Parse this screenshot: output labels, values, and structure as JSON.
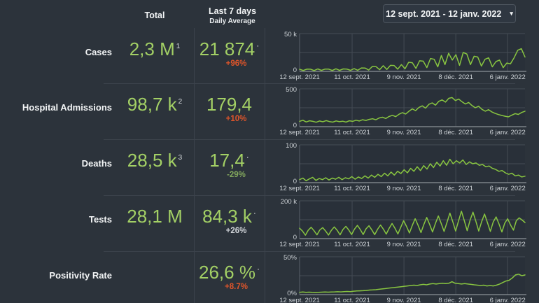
{
  "date_picker": {
    "value": "12 sept. 2021 - 12 janv. 2022",
    "caret": "▾"
  },
  "table": {
    "columns": {
      "total": "Total",
      "last7": "Last 7 days",
      "last7_sub": "Daily Average"
    }
  },
  "rows": [
    {
      "label": "Cases",
      "total": "2,3 M",
      "total_sup": "1",
      "avg": "21 874",
      "avg_sup": "·",
      "change": "+96%",
      "change_style": "orange"
    },
    {
      "label": "Hospital Admissions",
      "total": "98,7 k",
      "total_sup": "2",
      "avg": "179,4",
      "avg_sup": "",
      "change": "+10%",
      "change_style": "orange"
    },
    {
      "label": "Deaths",
      "total": "28,5 k",
      "total_sup": "3",
      "avg": "17,4",
      "avg_sup": "·",
      "change": "-29%",
      "change_style": "green"
    },
    {
      "label": "Tests",
      "total": "28,1 M",
      "total_sup": "",
      "avg": "84,3 k",
      "avg_sup": "·",
      "change": "+26%",
      "change_style": "neutral"
    },
    {
      "label": "Positivity Rate",
      "total": "",
      "total_sup": "",
      "avg": "26,6 %",
      "avg_sup": "·",
      "change": "+8.7%",
      "change_style": "orange"
    }
  ],
  "chart_data": [
    {
      "type": "line",
      "title": "Cases",
      "ylabel_max": "50 k",
      "ylabel_min": "0",
      "ymax": 50,
      "ylim": [
        0,
        50
      ],
      "grid": true,
      "legend": "none",
      "x_ticks": [
        "12 sept. 2021",
        "11 oct. 2021",
        "9 nov. 2021",
        "8 déc. 2021",
        "6 janv. 2022"
      ],
      "values": [
        2.8,
        1.2,
        3,
        2.9,
        1.1,
        3.2,
        1.3,
        3.1,
        3,
        1.2,
        3.4,
        1.3,
        3.2,
        3.1,
        1.4,
        3.6,
        1.5,
        4.5,
        4.4,
        1.8,
        6.5,
        6.3,
        2.2,
        7.5,
        2.6,
        8,
        7.8,
        3,
        9,
        3.5,
        12,
        11.5,
        4,
        14,
        13.5,
        5,
        17,
        16,
        6,
        21,
        9,
        24,
        15,
        22,
        8,
        25,
        23,
        9,
        20,
        19,
        7,
        16,
        18,
        6,
        13,
        15,
        5,
        11,
        10,
        18,
        28,
        30,
        19
      ]
    },
    {
      "type": "line",
      "title": "Hospital Admissions",
      "ylabel_max": "500",
      "ylabel_min": "0",
      "ymax": 500,
      "ylim": [
        0,
        500
      ],
      "grid": true,
      "legend": "none",
      "x_ticks": [
        "12 sept. 2021",
        "11 oct. 2021",
        "9 nov. 2021",
        "8 déc. 2021",
        "6 janv. 2022"
      ],
      "values": [
        70,
        85,
        62,
        78,
        70,
        58,
        75,
        65,
        80,
        68,
        60,
        76,
        66,
        72,
        60,
        78,
        70,
        85,
        75,
        92,
        82,
        96,
        105,
        92,
        115,
        125,
        108,
        135,
        150,
        132,
        165,
        185,
        168,
        205,
        235,
        212,
        255,
        275,
        245,
        295,
        315,
        285,
        335,
        355,
        325,
        375,
        385,
        345,
        365,
        330,
        300,
        320,
        280,
        250,
        270,
        230,
        205,
        225,
        195,
        175,
        160,
        148,
        138,
        130,
        152,
        172,
        162,
        188,
        205
      ]
    },
    {
      "type": "line",
      "title": "Deaths",
      "ylabel_max": "100",
      "ylabel_min": "0",
      "ymax": 100,
      "ylim": [
        0,
        100
      ],
      "grid": true,
      "legend": "none",
      "x_ticks": [
        "12 sept. 2021",
        "11 oct. 2021",
        "9 nov. 2021",
        "8 déc. 2021",
        "6 janv. 2022"
      ],
      "values": [
        8,
        12,
        5,
        10,
        14,
        6,
        11,
        8,
        13,
        7,
        12,
        9,
        14,
        8,
        13,
        10,
        16,
        9,
        15,
        11,
        18,
        12,
        20,
        14,
        22,
        16,
        25,
        18,
        28,
        20,
        30,
        24,
        34,
        26,
        38,
        30,
        42,
        32,
        45,
        36,
        50,
        40,
        54,
        44,
        58,
        46,
        62,
        50,
        58,
        52,
        60,
        48,
        55,
        50,
        52,
        46,
        48,
        42,
        44,
        38,
        35,
        30,
        32,
        26,
        22,
        25,
        18,
        20,
        15,
        17
      ]
    },
    {
      "type": "line",
      "title": "Tests",
      "ylabel_max": "200 k",
      "ylabel_min": "0",
      "ymax": 200,
      "ylim": [
        0,
        200
      ],
      "grid": true,
      "legend": "none",
      "x_ticks": [
        "12 sept. 2021",
        "11 oct. 2021",
        "9 nov. 2021",
        "8 déc. 2021",
        "6 janv. 2022"
      ],
      "values": [
        55,
        40,
        18,
        45,
        60,
        42,
        20,
        46,
        58,
        40,
        19,
        44,
        62,
        44,
        20,
        48,
        65,
        46,
        22,
        50,
        70,
        48,
        22,
        52,
        68,
        46,
        21,
        50,
        72,
        50,
        24,
        55,
        80,
        55,
        25,
        60,
        95,
        65,
        30,
        70,
        105,
        70,
        32,
        75,
        112,
        75,
        35,
        80,
        120,
        80,
        38,
        85,
        135,
        90,
        40,
        95,
        145,
        95,
        42,
        98,
        140,
        92,
        40,
        90,
        130,
        85,
        38,
        88,
        115,
        78,
        35,
        82,
        105,
        72,
        45,
        95,
        110,
        98,
        85
      ]
    },
    {
      "type": "line",
      "title": "Positivity Rate",
      "ylabel_max": "50%",
      "ylabel_min": "0%",
      "ymax": 50,
      "ylim": [
        0,
        50
      ],
      "grid": true,
      "legend": "none",
      "x_ticks": [
        "12 sept. 2021",
        "11 oct. 2021",
        "9 nov. 2021",
        "8 déc. 2021",
        "6 janv. 2022"
      ],
      "values": [
        3,
        3.5,
        3,
        3.2,
        3,
        2.8,
        3,
        3.2,
        3.4,
        3.2,
        3.5,
        3.6,
        3.8,
        3.6,
        4,
        4.2,
        4,
        4.5,
        4.8,
        5,
        5.2,
        5.5,
        6,
        6.2,
        6.5,
        7,
        7.5,
        8,
        8.5,
        9,
        9.5,
        10,
        10.5,
        11,
        11.5,
        12,
        12.5,
        12,
        13,
        13.5,
        13,
        14,
        14.5,
        14,
        14.5,
        15,
        14.5,
        15,
        17,
        15,
        14.5,
        14,
        14.5,
        14,
        13.5,
        13,
        12.5,
        12,
        12.5,
        11.5,
        12,
        11.5,
        12.5,
        14,
        16,
        18,
        19,
        22,
        26,
        27,
        25,
        26
      ]
    }
  ],
  "colors": {
    "background": "#2c333b",
    "plot_background": "#293039",
    "value_green": "#a3d065",
    "line_green": "#88c540",
    "alert_orange": "#df552a",
    "good_green": "#83a85d",
    "neutral_gray": "#d2d6da",
    "grid": "#454c55",
    "axis": "#8b9298",
    "divider": "#3c434c"
  }
}
